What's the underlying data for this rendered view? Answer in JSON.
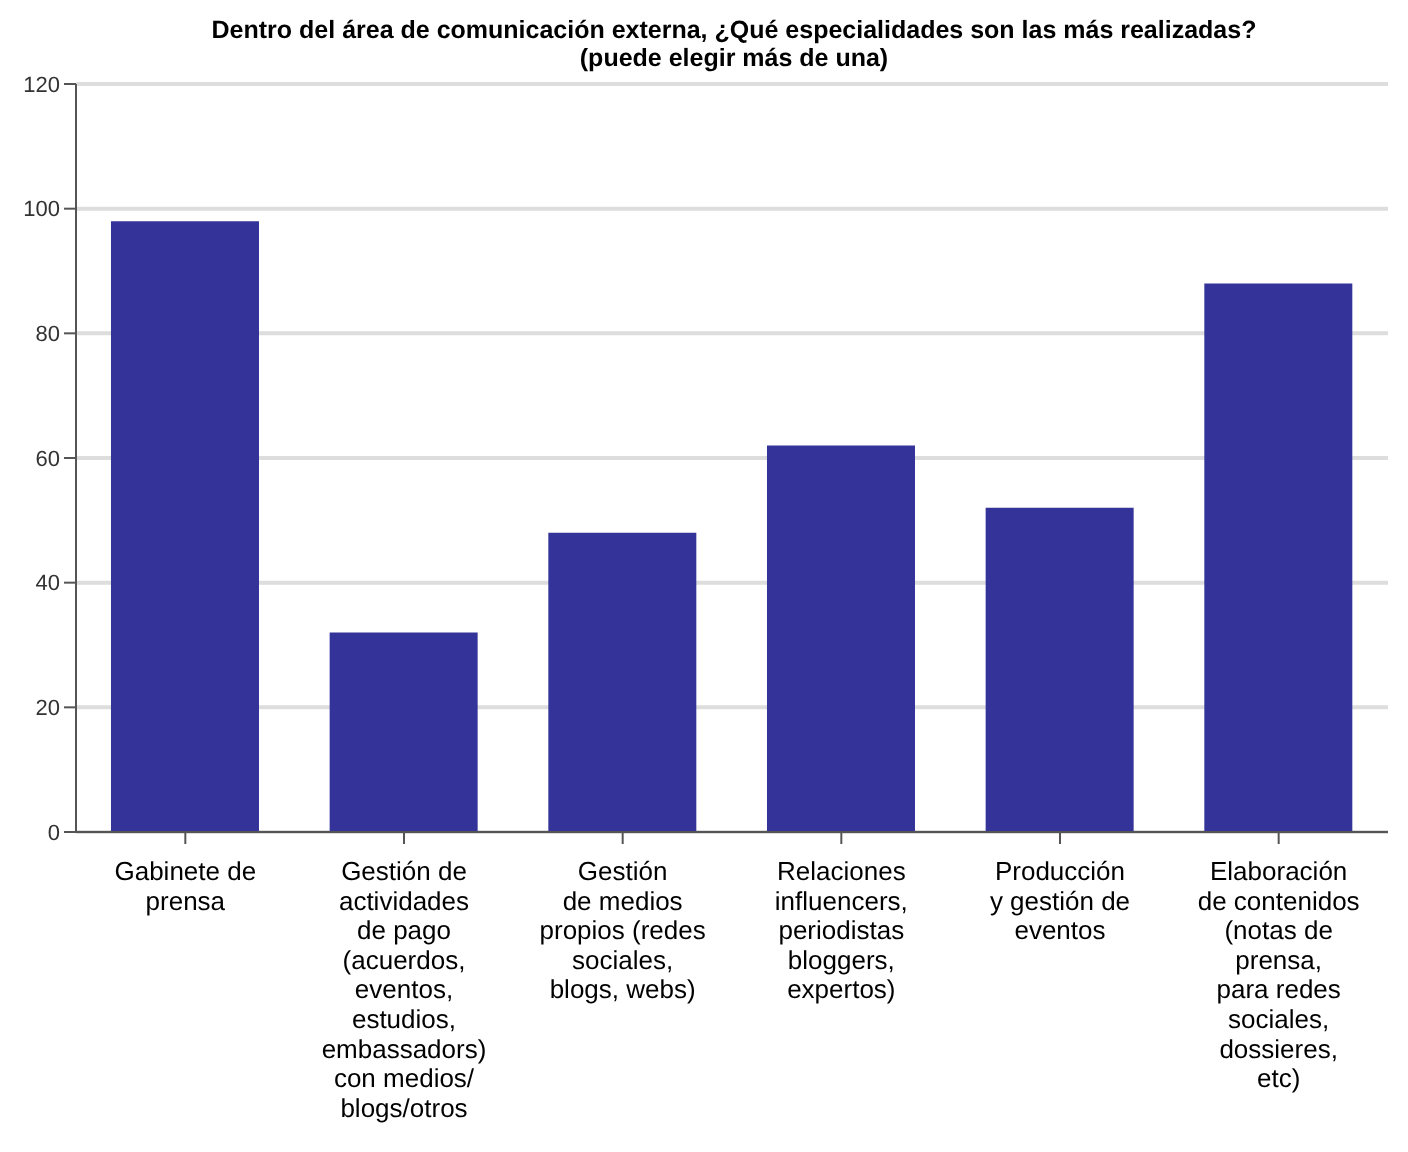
{
  "chart_data": {
    "type": "bar",
    "title": "Dentro del área de comunicación externa, ¿Qué especialidades son las más realizadas?\n(puede elegir más de una)",
    "categories": [
      "Gabinete de\nprensa",
      "Gestión de\nactividades\nde pago\n(acuerdos,\neventos,\nestudios,\nembassadors)\ncon medios/\nblogs/otros",
      "Gestión\nde medios\npropios (redes\nsociales,\nblogs, webs)",
      "Relaciones\ninfluencers,\nperiodistas\nbloggers,\nexpertos)",
      "Producción\ny gestión de\neventos",
      "Elaboración\nde contenidos\n(notas de\nprensa,\npara redes\nsociales,\ndossieres,\netc)"
    ],
    "values": [
      98,
      32,
      48,
      62,
      52,
      88
    ],
    "color": "#333399",
    "ylim": [
      0,
      120
    ],
    "yticks": [
      0,
      20,
      40,
      60,
      80,
      100,
      120
    ],
    "grid": "y"
  }
}
